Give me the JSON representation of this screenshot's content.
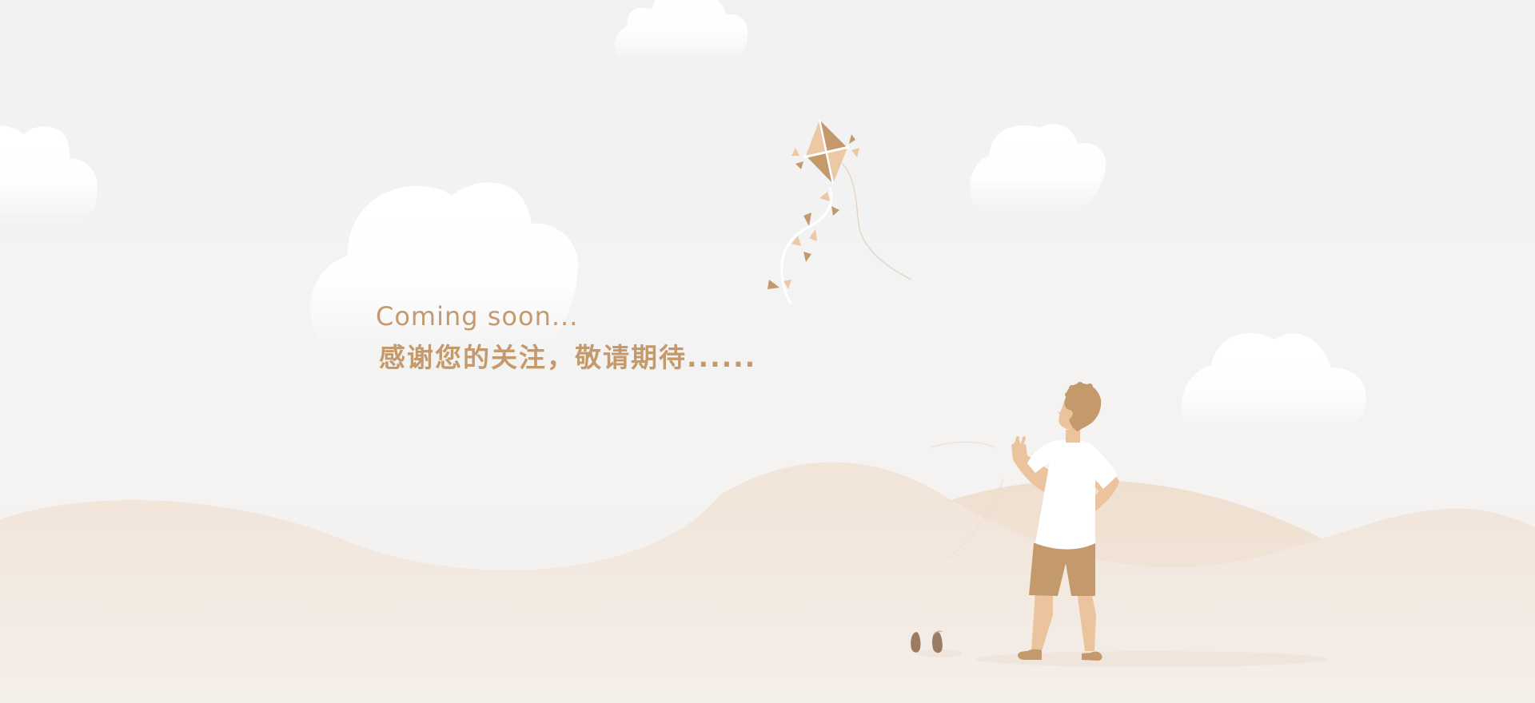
{
  "page": {
    "title_en": "Coming soon...",
    "title_zh": "感谢您的关注，敬请期待......"
  },
  "colors": {
    "accent": "#c49a6c",
    "accent_light": "#ebc9a5",
    "skin": "#ebc49e",
    "hill_light": "#f1e5da",
    "hill_mid": "#f0e0d1",
    "background": "#f2f2f2"
  },
  "icons": [
    "cloud-icon",
    "kite-icon",
    "boy-illustration",
    "shoes-icon"
  ]
}
